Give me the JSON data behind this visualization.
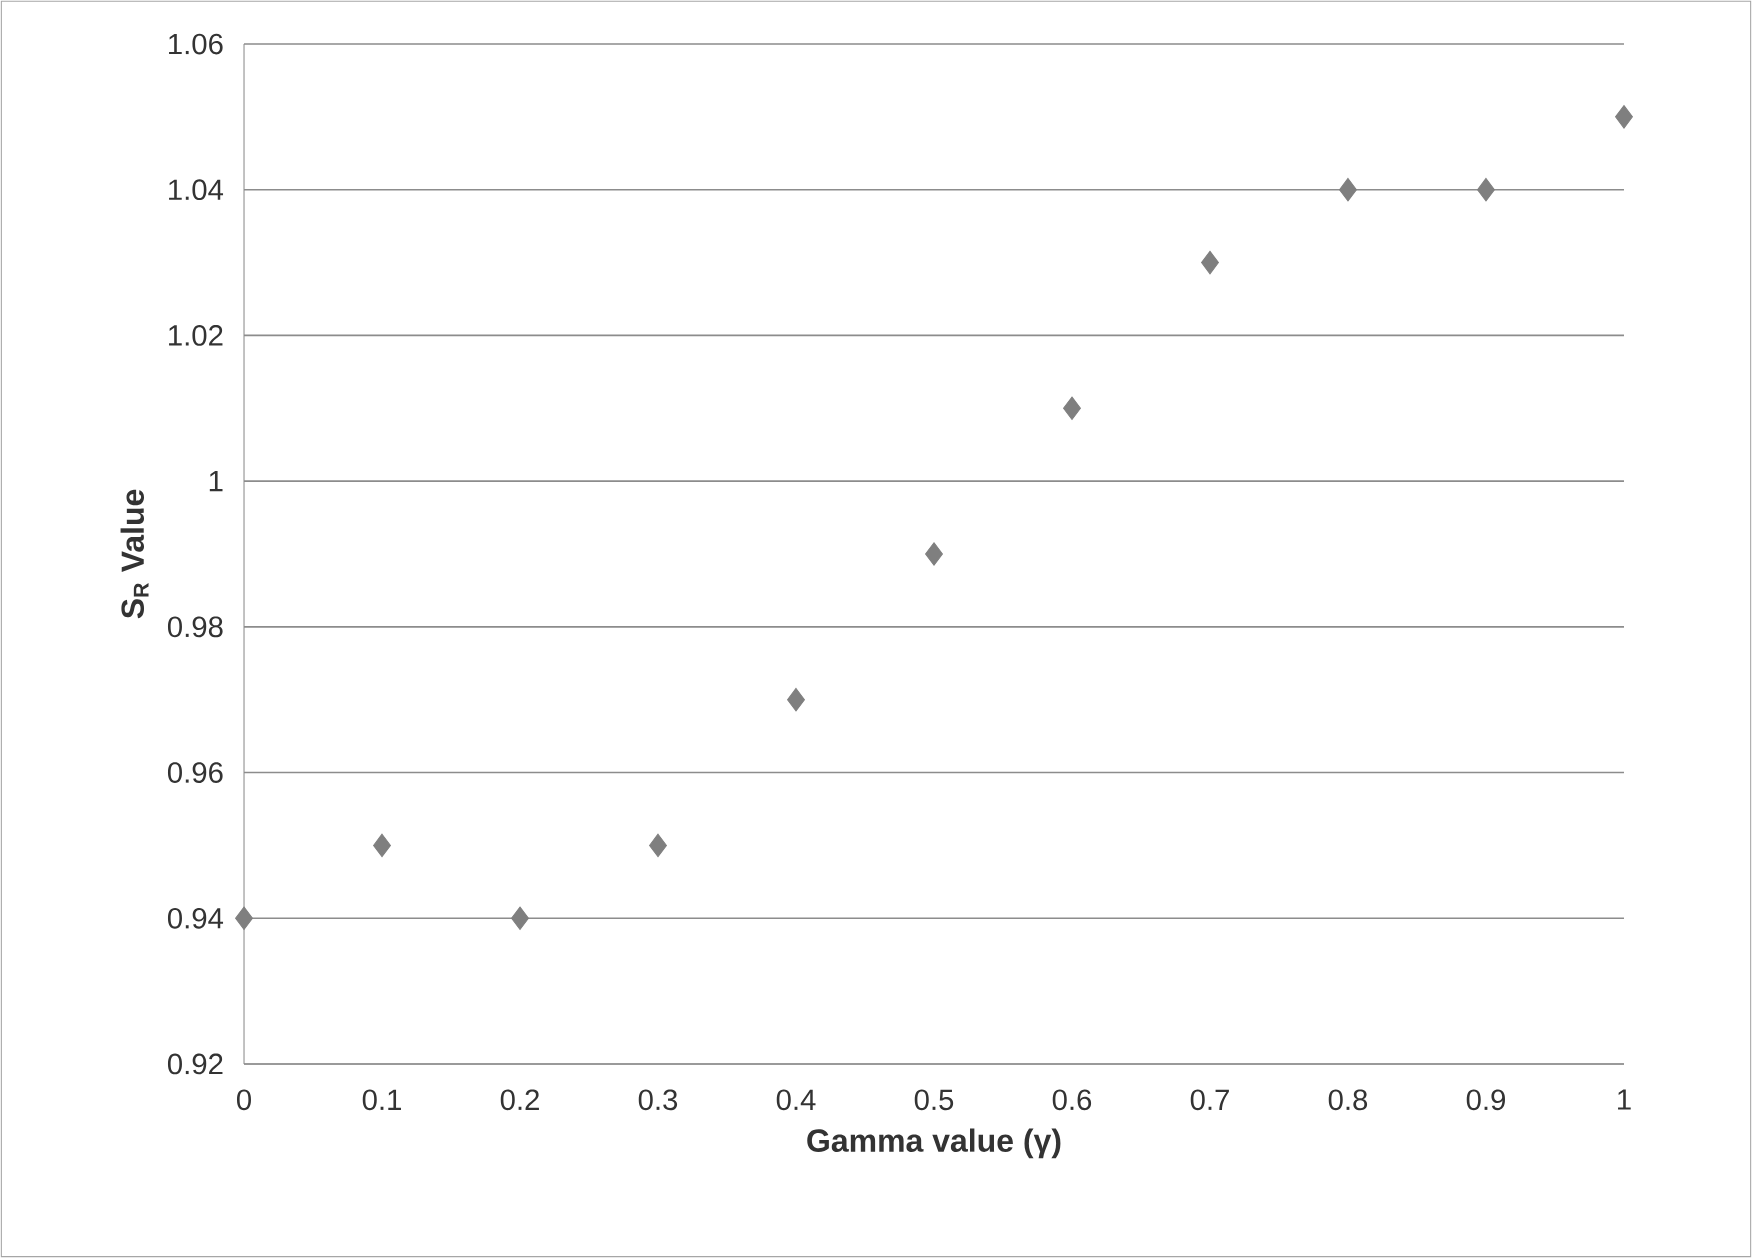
{
  "chart_data": {
    "type": "scatter",
    "xlabel": "Gamma value (γ)",
    "ylabel": "S$_{R}$ Value",
    "x": [
      0,
      0.1,
      0.2,
      0.3,
      0.4,
      0.5,
      0.6,
      0.7,
      0.8,
      0.9,
      1
    ],
    "series": [
      {
        "color": "#7f7f7f",
        "values": [
          0.94,
          0.95,
          0.94,
          0.95,
          0.97,
          0.99,
          1.01,
          1.03,
          1.04,
          1.04,
          1.05
        ]
      }
    ],
    "xlim": [
      0,
      1
    ],
    "xticks": [
      0,
      0.1,
      0.2,
      0.3,
      0.4,
      0.5,
      0.6,
      0.7,
      0.8,
      0.9,
      1
    ],
    "ylim": [
      0.92,
      1.06
    ],
    "yticks": [
      0.92,
      0.94,
      0.96,
      0.98,
      1,
      1.02,
      1.04,
      1.06
    ],
    "grid": "y",
    "marker": "diamond"
  }
}
